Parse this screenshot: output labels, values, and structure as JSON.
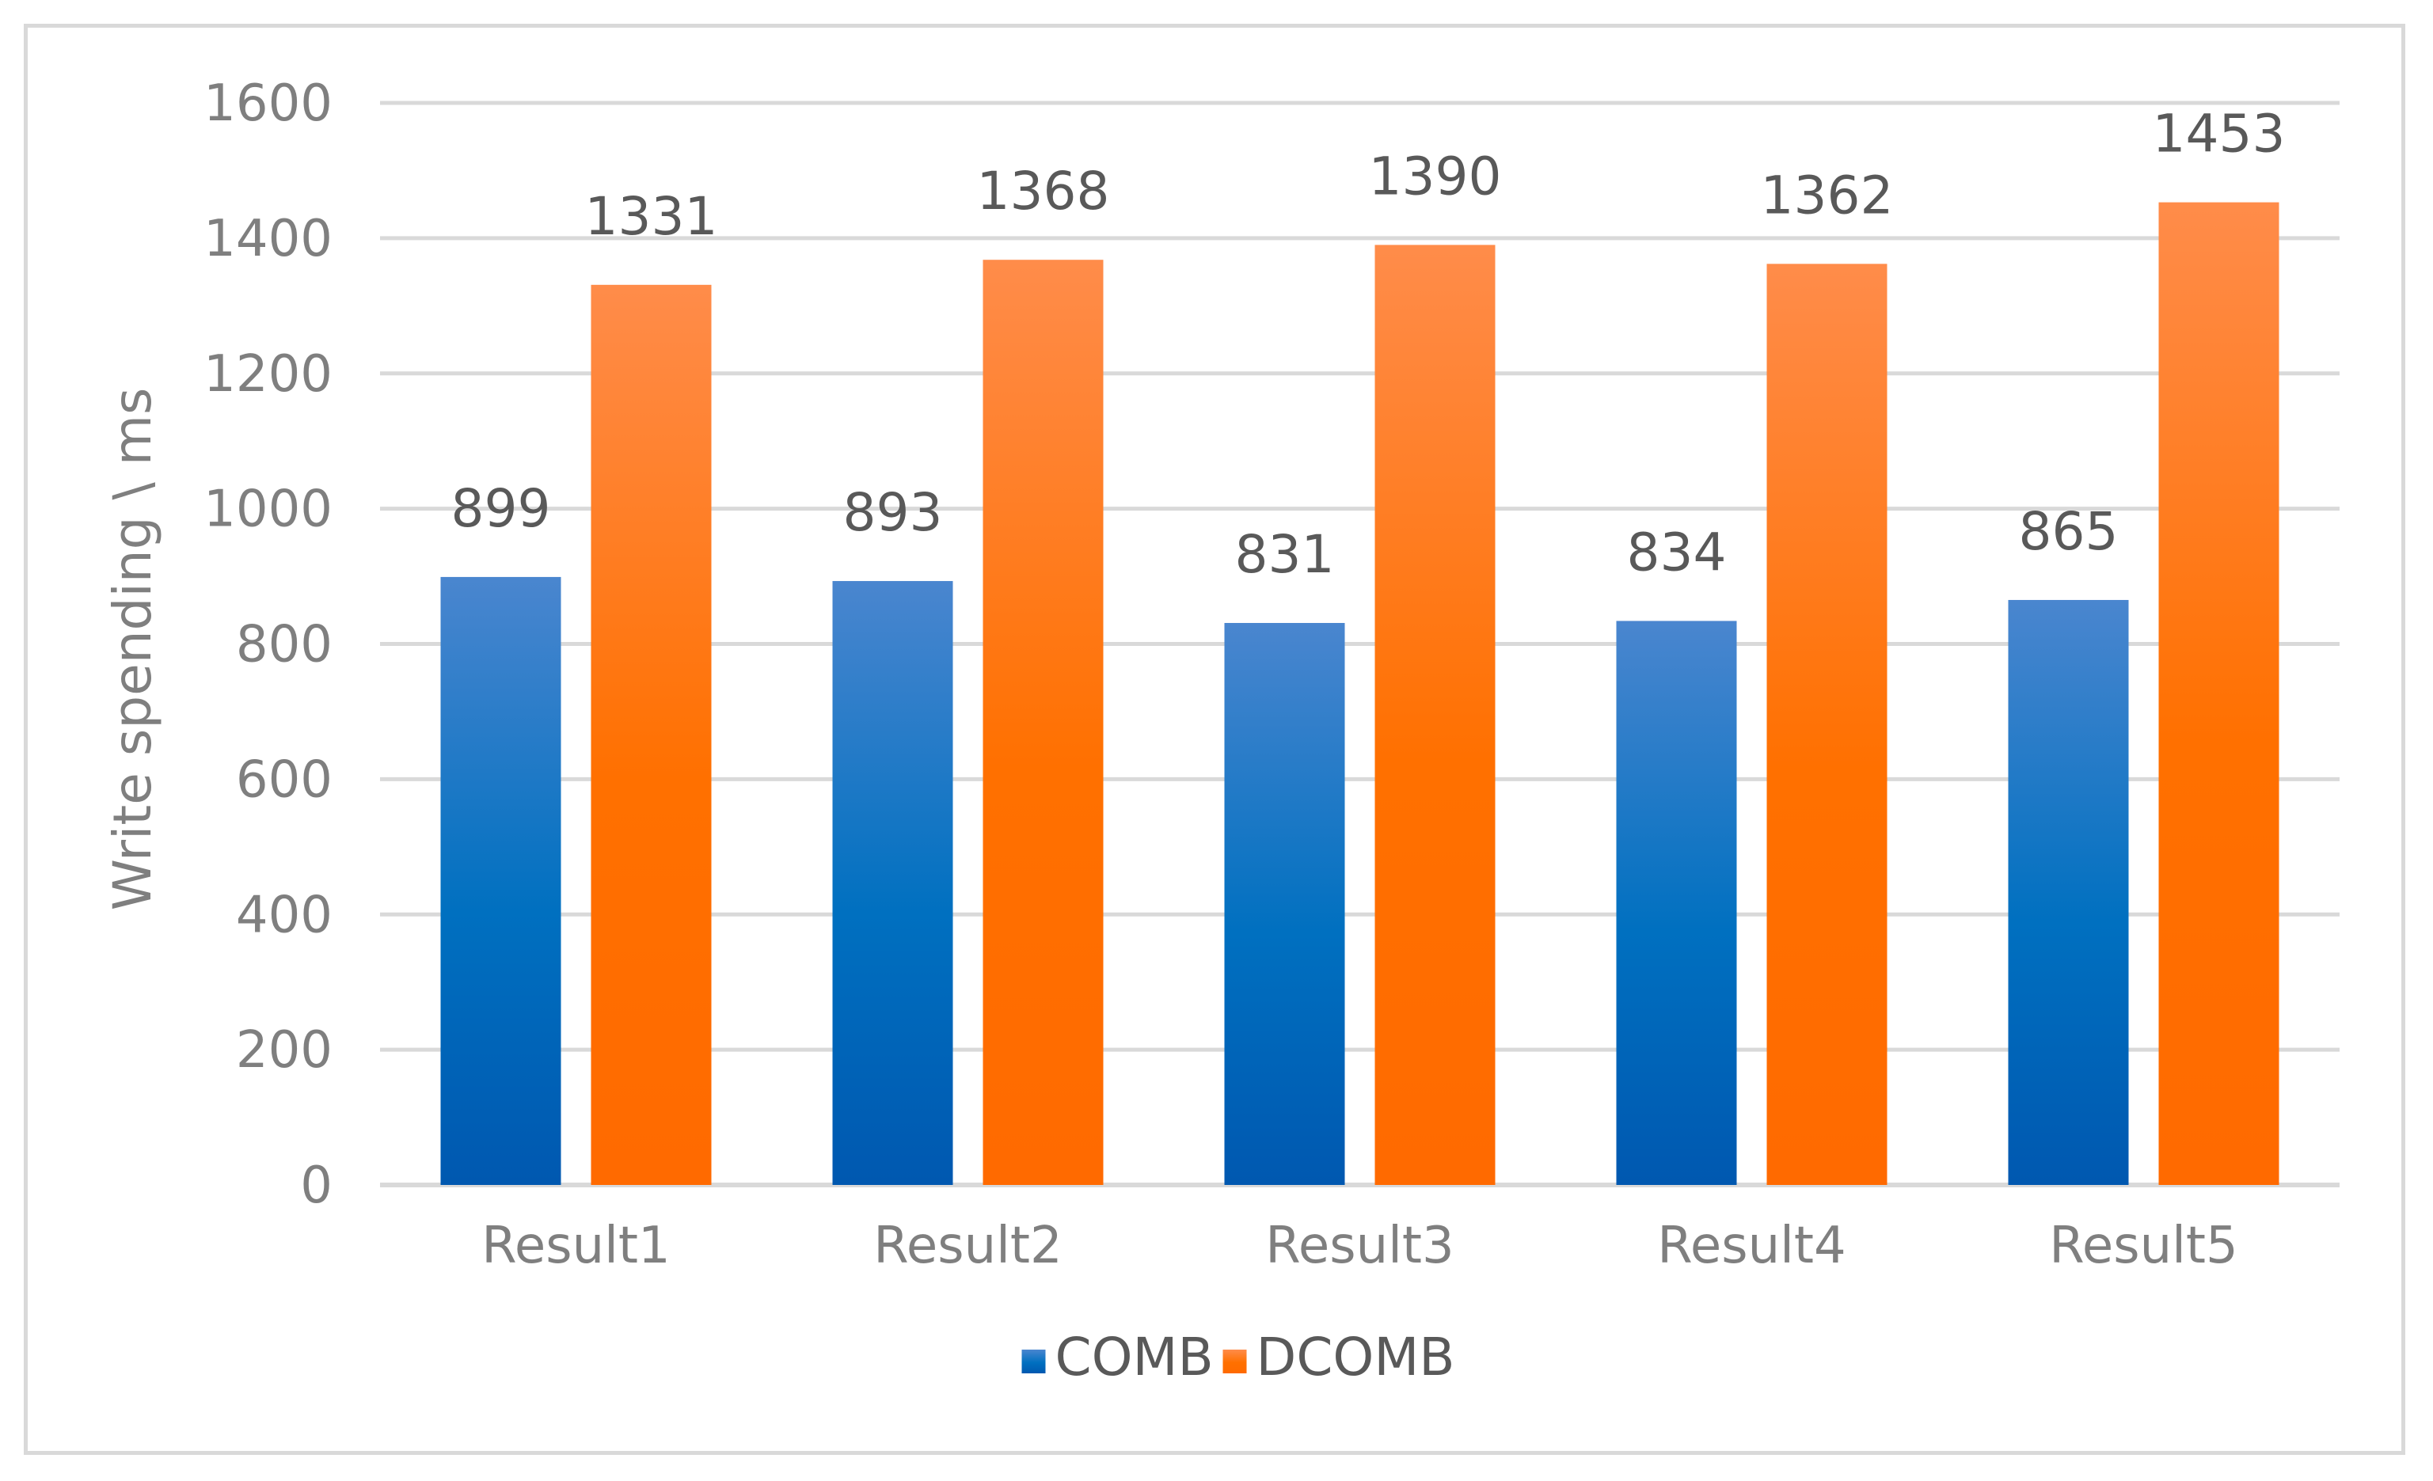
{
  "chart_data": {
    "type": "bar",
    "title": "",
    "xlabel": "",
    "ylabel": "Write spending \\ ms",
    "categories": [
      "Result1",
      "Result2",
      "Result3",
      "Result4",
      "Result5"
    ],
    "series": [
      {
        "name": "COMB",
        "values": [
          899,
          893,
          831,
          834,
          865
        ],
        "color": "#0070c0",
        "color_top": "#4a86cf",
        "color_bottom": "#0058b0"
      },
      {
        "name": "DCOMB",
        "values": [
          1331,
          1368,
          1390,
          1362,
          1453
        ],
        "color": "#ff7000",
        "color_top": "#ff8c4a",
        "color_bottom": "#ff6a00"
      }
    ],
    "ylim": [
      0,
      1600
    ],
    "yticks": [
      0,
      200,
      400,
      600,
      800,
      1000,
      1200,
      1400,
      1600
    ],
    "grid": true,
    "legend": "bottom",
    "data_labels": true,
    "gridline_color": "#d9d9d9"
  }
}
